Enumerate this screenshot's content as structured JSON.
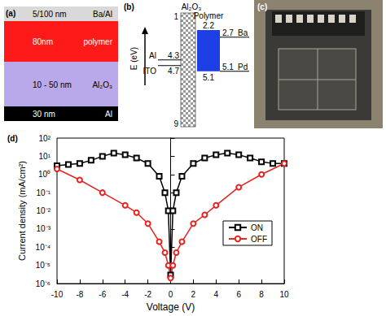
{
  "panel_a": {
    "label": "(a)",
    "layers": [
      {
        "thickness": "5/100 nm",
        "material": "Ba/Al",
        "color": "#d9d9d9"
      },
      {
        "thickness": "80nm",
        "material": "polymer",
        "color": "#ff1a1a"
      },
      {
        "thickness": "10 - 50 nm",
        "material": "Al₂O₃",
        "color": "#b9a9ea"
      },
      {
        "thickness": "30 nm",
        "material": "Al",
        "color": "#000000"
      }
    ]
  },
  "panel_b": {
    "label": "(b)",
    "axis_label": "E (eV)",
    "barrier": {
      "name": "Al₂O₃",
      "top": 1,
      "bottom": 9
    },
    "polymer": {
      "name": "Polymer",
      "lumo": 2.2,
      "homo": 5.1,
      "color": "#1f3fe6"
    },
    "left": [
      {
        "name": "Al",
        "level": 4.3
      },
      {
        "name": "ITO",
        "level": 4.7
      }
    ],
    "right": [
      {
        "name": "Ba",
        "level": 2.7
      },
      {
        "name": "Pd",
        "level": 5.1
      }
    ]
  },
  "panel_c": {
    "label": "(c)"
  },
  "chart_data": {
    "type": "line",
    "label": "(d)",
    "x_label": "Voltage (V)",
    "y_label": "Current density (mA/cm²)",
    "log": "y",
    "legend": "right",
    "xlim": [
      -10,
      10
    ],
    "xticks": [
      -10,
      -8,
      -6,
      -4,
      -2,
      0,
      2,
      4,
      6,
      8,
      10
    ],
    "ylim": [
      1e-06,
      100
    ],
    "yticks": [
      {
        "value": 1e-06,
        "label": "10⁻⁶"
      },
      {
        "value": 1e-05,
        "label": "10⁻⁵"
      },
      {
        "value": 0.0001,
        "label": "10⁻⁴"
      },
      {
        "value": 0.001,
        "label": "10⁻³"
      },
      {
        "value": 0.01,
        "label": "10⁻²"
      },
      {
        "value": 0.1,
        "label": "10⁻¹"
      },
      {
        "value": 1,
        "label": "10⁰"
      },
      {
        "value": 10,
        "label": "10¹"
      },
      {
        "value": 100,
        "label": "10²"
      }
    ],
    "series": [
      {
        "name": "ON",
        "color": "#000000",
        "marker": "square",
        "x": [
          -10,
          -9,
          -8,
          -7,
          -6,
          -5,
          -4,
          -3,
          -2,
          -1,
          -0.5,
          -0.2,
          0,
          0.2,
          0.5,
          1,
          2,
          3,
          4,
          5,
          6,
          7,
          8,
          9,
          10
        ],
        "values": [
          3,
          3.5,
          4,
          6,
          10,
          15,
          12,
          8,
          4,
          0.8,
          0.1,
          0.01,
          3e-06,
          0.01,
          0.1,
          0.8,
          4,
          8,
          12,
          15,
          12,
          8,
          5,
          4,
          4
        ]
      },
      {
        "name": "OFF",
        "color": "#e8231f",
        "marker": "circle",
        "x": [
          -10,
          -8,
          -6,
          -4,
          -3,
          -2,
          -1,
          -0.5,
          -0.2,
          0,
          0.2,
          0.5,
          1,
          2,
          3,
          4,
          6,
          8,
          10
        ],
        "values": [
          2,
          0.5,
          0.1,
          0.02,
          0.008,
          0.002,
          0.0002,
          5e-05,
          1e-05,
          2e-06,
          1e-05,
          5e-05,
          0.0002,
          0.002,
          0.006,
          0.02,
          0.2,
          1,
          4
        ]
      }
    ]
  }
}
